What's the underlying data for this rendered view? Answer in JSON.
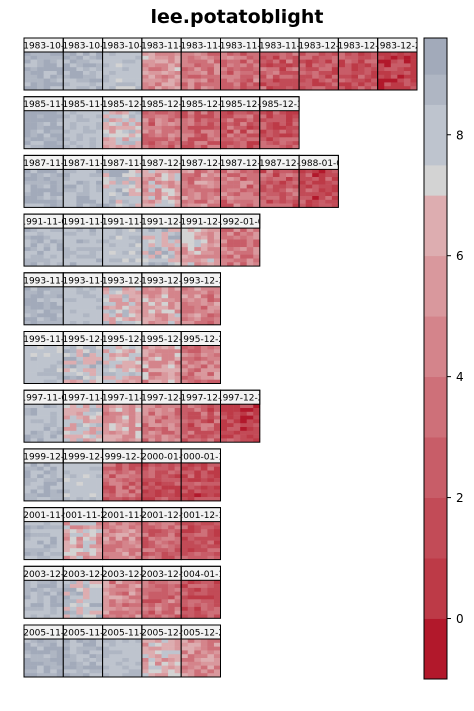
{
  "chart_data": {
    "type": "heatmap",
    "title": "lee.potatoblight",
    "xlabel": "",
    "ylabel": "",
    "colorbar": {
      "range": [
        -1,
        9.6
      ],
      "ticks": [
        0,
        2,
        4,
        6,
        8
      ],
      "palette": [
        "#B2182B",
        "#BD3A47",
        "#C24B57",
        "#C85D68",
        "#CE7079",
        "#D4848B",
        "#D9989D",
        "#DDADB0",
        "#D3D3D3",
        "#BEC4CE",
        "#AFB6C3",
        "#A2AABA"
      ],
      "breaks": [
        -1,
        0,
        1,
        2,
        3,
        4,
        5,
        6,
        7,
        7.5,
        8.5,
        9,
        9.6
      ]
    },
    "years": [
      {
        "year": "1983",
        "panels": [
          {
            "label": "1983-10-",
            "mean": 8.9
          },
          {
            "label": "1983-10-",
            "mean": 8.7
          },
          {
            "label": "1983-10-",
            "mean": 8.0
          },
          {
            "label": "1983-11-",
            "mean": 5.6
          },
          {
            "label": "1983-11-",
            "mean": 4.0
          },
          {
            "label": "1983-11-",
            "mean": 3.3
          },
          {
            "label": "1983-11-",
            "mean": 2.6
          },
          {
            "label": "1983-12-",
            "mean": 2.2
          },
          {
            "label": "1983-12-",
            "mean": 1.7
          },
          {
            "label": "1983-12-2",
            "mean": 0.9
          }
        ]
      },
      {
        "year": "1985",
        "panels": [
          {
            "label": "1985-11-",
            "mean": 8.9
          },
          {
            "label": "1985-11-",
            "mean": 8.3
          },
          {
            "label": "1985-12-",
            "mean": 7.0
          },
          {
            "label": "1985-12-",
            "mean": 3.5
          },
          {
            "label": "1985-12-",
            "mean": 2.8
          },
          {
            "label": "1985-12-",
            "mean": 2.4
          },
          {
            "label": "1985-12-3",
            "mean": 2.0
          }
        ]
      },
      {
        "year": "1987",
        "panels": [
          {
            "label": "1987-11-",
            "mean": 8.9
          },
          {
            "label": "1987-11-",
            "mean": 8.5
          },
          {
            "label": "1987-11-",
            "mean": 7.8
          },
          {
            "label": "1987-12-",
            "mean": 6.2
          },
          {
            "label": "1987-12-",
            "mean": 4.5
          },
          {
            "label": "1987-12-",
            "mean": 3.5
          },
          {
            "label": "1987-12-",
            "mean": 2.5
          },
          {
            "label": "1988-01-0",
            "mean": 1.6
          }
        ]
      },
      {
        "year": "1991",
        "panels": [
          {
            "label": "1991-11-0",
            "mean": 8.6
          },
          {
            "label": "1991-11-",
            "mean": 8.4
          },
          {
            "label": "1991-11-",
            "mean": 8.1
          },
          {
            "label": "1991-12-",
            "mean": 7.6
          },
          {
            "label": "1991-12-",
            "mean": 6.0
          },
          {
            "label": "1992-01-0",
            "mean": 3.8
          }
        ]
      },
      {
        "year": "1993",
        "panels": [
          {
            "label": "1993-11-",
            "mean": 8.9
          },
          {
            "label": "1993-11-",
            "mean": 8.2
          },
          {
            "label": "1993-12-",
            "mean": 7.0
          },
          {
            "label": "1993-12-",
            "mean": 5.8
          },
          {
            "label": "1993-12-3",
            "mean": 4.6
          }
        ]
      },
      {
        "year": "1995",
        "panels": [
          {
            "label": "1995-11-",
            "mean": 8.0
          },
          {
            "label": "1995-12-",
            "mean": 7.6
          },
          {
            "label": "1995-12-",
            "mean": 6.9
          },
          {
            "label": "1995-12-",
            "mean": 5.5
          },
          {
            "label": "1995-12-2",
            "mean": 4.4
          }
        ]
      },
      {
        "year": "1997",
        "panels": [
          {
            "label": "1997-11-0",
            "mean": 8.4
          },
          {
            "label": "1997-11-",
            "mean": 7.2
          },
          {
            "label": "1997-11-",
            "mean": 5.6
          },
          {
            "label": "1997-12-",
            "mean": 4.2
          },
          {
            "label": "1997-12-",
            "mean": 2.6
          },
          {
            "label": "1997-12-2",
            "mean": 1.3
          }
        ]
      },
      {
        "year": "1999",
        "panels": [
          {
            "label": "1999-12-",
            "mean": 8.6
          },
          {
            "label": "1999-12-",
            "mean": 8.0
          },
          {
            "label": "1999-12-3",
            "mean": 3.2
          },
          {
            "label": "2000-01-",
            "mean": 2.2
          },
          {
            "label": "2000-01-1",
            "mean": 1.7
          }
        ]
      },
      {
        "year": "2001",
        "panels": [
          {
            "label": "2001-11-",
            "mean": 8.5
          },
          {
            "label": "2001-11-2",
            "mean": 6.4
          },
          {
            "label": "2001-11-",
            "mean": 5.0
          },
          {
            "label": "2001-12-",
            "mean": 3.2
          },
          {
            "label": "2001-12-1",
            "mean": 2.0
          }
        ]
      },
      {
        "year": "2003",
        "panels": [
          {
            "label": "2003-12-",
            "mean": 8.6
          },
          {
            "label": "2003-12-",
            "mean": 7.8
          },
          {
            "label": "2003-12-",
            "mean": 4.6
          },
          {
            "label": "2003-12-",
            "mean": 3.4
          },
          {
            "label": "2004-01-1",
            "mean": 2.2
          }
        ]
      },
      {
        "year": "2005",
        "panels": [
          {
            "label": "2005-11-",
            "mean": 8.9
          },
          {
            "label": "2005-11-",
            "mean": 8.7
          },
          {
            "label": "2005-11-",
            "mean": 8.3
          },
          {
            "label": "2005-12-",
            "mean": 6.3
          },
          {
            "label": "2005-12-2",
            "mean": 4.9
          }
        ]
      }
    ]
  }
}
